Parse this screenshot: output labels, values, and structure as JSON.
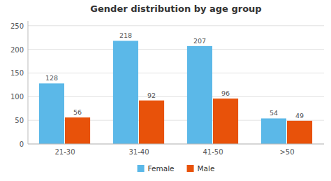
{
  "chart_data": {
    "type": "bar",
    "title": "Gender distribution by age group",
    "categories": [
      "21-30",
      "31-40",
      "41-50",
      ">50"
    ],
    "series": [
      {
        "name": "Female",
        "color": "#5BB8E8",
        "values": [
          128,
          218,
          207,
          54
        ]
      },
      {
        "name": "Male",
        "color": "#E8520A",
        "values": [
          56,
          92,
          96,
          49
        ]
      }
    ],
    "ylim": [
      0,
      260
    ],
    "yticks": [
      0,
      50,
      100,
      150,
      200,
      250
    ],
    "grid": true,
    "data_labels": true,
    "legend": "bottom"
  }
}
